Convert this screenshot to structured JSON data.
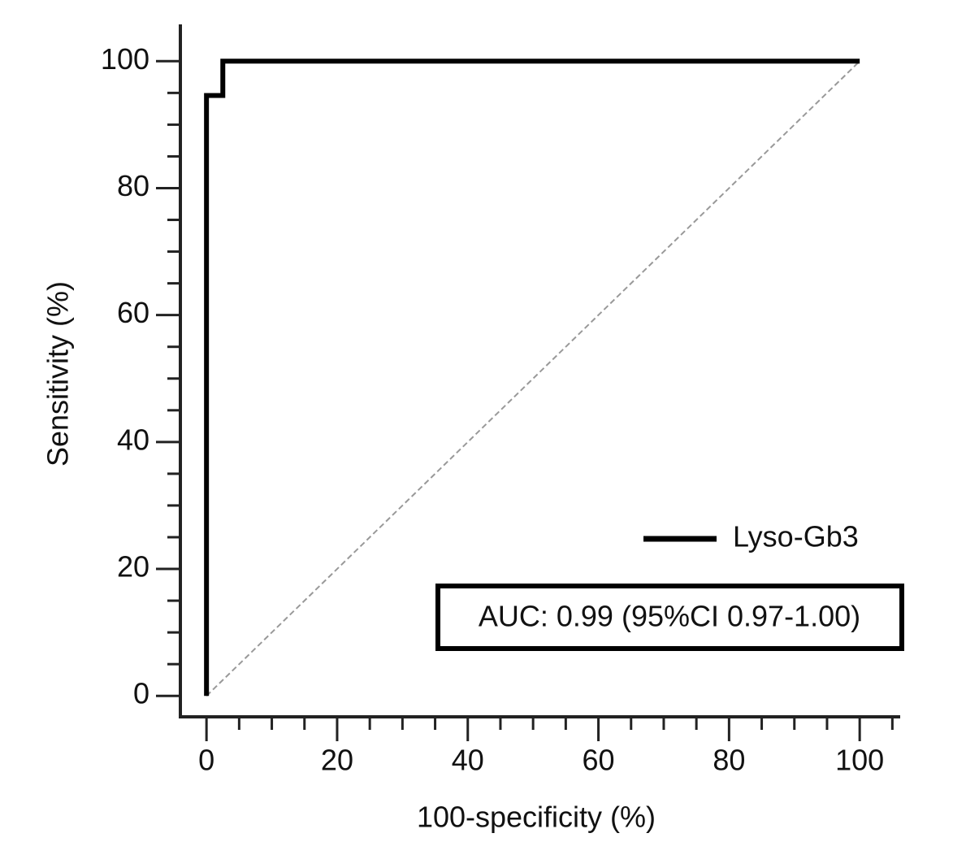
{
  "chart_data": {
    "type": "line",
    "x_label": "100-specificity (%)",
    "y_label": "Sensitivity (%)",
    "xlim": [
      -4,
      106.2
    ],
    "ylim": [
      -3.3,
      105.8
    ],
    "xticks": [
      0,
      20,
      40,
      60,
      80,
      100
    ],
    "yticks": [
      0,
      20,
      40,
      60,
      80,
      100
    ],
    "xminorticks": [
      5,
      10,
      15,
      25,
      30,
      35,
      45,
      50,
      55,
      65,
      70,
      75,
      85,
      90,
      95,
      105
    ],
    "yminorticks": [
      5,
      10,
      15,
      25,
      30,
      35,
      45,
      50,
      55,
      65,
      70,
      75,
      85,
      90,
      95
    ],
    "series": [
      {
        "name": "Lyso-Gb3",
        "color": "#000000",
        "x": [
          0,
          0,
          2.5,
          2.5,
          100
        ],
        "y": [
          0,
          94.6,
          94.6,
          100,
          100
        ]
      }
    ],
    "reference_line": {
      "color": "#999999",
      "x": [
        0,
        100
      ],
      "y": [
        0,
        100
      ]
    },
    "annotation": "AUC: 0.99 (95%CI 0.97-1.00)",
    "legend": "lower right"
  }
}
